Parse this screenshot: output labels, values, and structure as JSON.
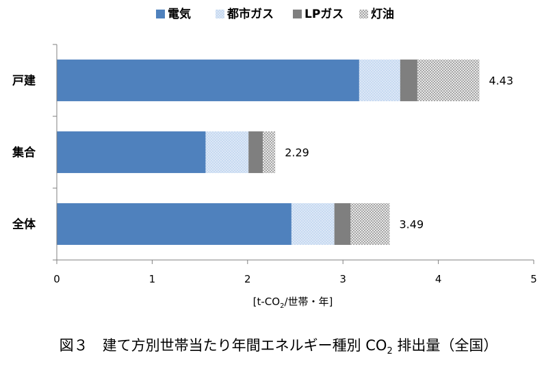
{
  "chart_data": {
    "type": "bar",
    "orientation": "horizontal",
    "stacked": true,
    "categories": [
      "戸建",
      "集合",
      "全体"
    ],
    "series": [
      {
        "name": "電気",
        "values": [
          3.17,
          1.56,
          2.46
        ],
        "color": "#4f81bd",
        "pattern": "solid"
      },
      {
        "name": "都市ガス",
        "values": [
          0.43,
          0.45,
          0.45
        ],
        "color": "#c6d9f1",
        "pattern": "light-dots"
      },
      {
        "name": "LPガス",
        "values": [
          0.18,
          0.15,
          0.17
        ],
        "color": "#7f7f7f",
        "pattern": "solid"
      },
      {
        "name": "灯油",
        "values": [
          0.65,
          0.13,
          0.41
        ],
        "color": "#c8c8c8",
        "pattern": "checker"
      }
    ],
    "totals": [
      "4.43",
      "2.29",
      "3.49"
    ],
    "x_ticks": [
      "0",
      "1",
      "2",
      "3",
      "4",
      "5"
    ],
    "xlim": [
      0,
      5
    ],
    "xlabel_parts": {
      "prefix": "[t-CO",
      "sub": "2",
      "suffix": "/世帯・年]"
    },
    "legend_position": "top",
    "grid": false
  },
  "caption": {
    "prefix": "図３　建て方別世帯当たり年間エネルギー種別 CO",
    "sub": "2",
    "suffix": " 排出量（全国）"
  }
}
